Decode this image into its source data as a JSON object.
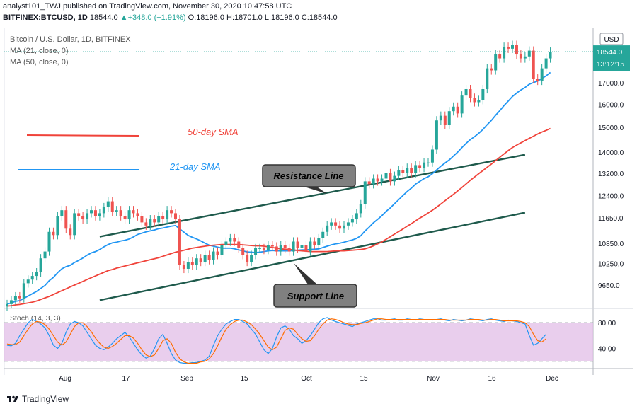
{
  "header": {
    "line1": "analyst101_TWJ published on TradingView.com, November 30, 2020 10:47:58 UTC",
    "symbol": "BITFINEX:BTCUSD, 1D",
    "last": "18544.0",
    "change_arrow": "▲",
    "change": "+348.0 (+1.91%)",
    "ohlc": "O:18196.0 H:18701.0 L:18196.0 C:18544.0"
  },
  "pane_labels": {
    "title": "Bitcoin / U.S. Dollar, 1D, BITFINEX",
    "ma21": "MA (21, close, 0)",
    "ma50": "MA (50, close, 0)",
    "stoch": "Stoch (14, 3, 3)"
  },
  "annotations": {
    "sma50": "50-day SMA",
    "sma21": "21-day SMA",
    "resistance": "Resistance Line",
    "support": "Support Line"
  },
  "price_axis": {
    "currency": "USD",
    "last_price": "18544.0",
    "countdown": "13:12:15"
  },
  "footer": {
    "brand": "TradingView"
  },
  "colors": {
    "up": "#26a69a",
    "down": "#ef5350",
    "ma21": "#2196f3",
    "ma50": "#f0433a",
    "trend": "#1e5a4c",
    "stoch_k": "#2196f3",
    "stoch_d": "#ff6d00",
    "stoch_band": "#e1bee7"
  },
  "chart_data": [
    {
      "type": "candlestick",
      "xlabel": "",
      "ylabel": "",
      "x_ticks": [
        "Aug",
        "17",
        "Sep",
        "15",
        "Oct",
        "15",
        "Nov",
        "16",
        "Dec"
      ],
      "y_ticks": [
        17000,
        16000,
        15000,
        14000,
        13200,
        12400,
        11650,
        10850,
        10250,
        9650
      ],
      "y_tick_labels": [
        "17000.0",
        "16000.0",
        "15000.0",
        "14000.0",
        "13200.0",
        "12400.0",
        "11650.0",
        "10850.0",
        "10250.0",
        "9650.0"
      ],
      "ylim": [
        9150,
        19800
      ],
      "grid": false,
      "close": [
        9150,
        9250,
        9350,
        9300,
        9700,
        9800,
        9900,
        10000,
        10400,
        10600,
        11200,
        11100,
        11700,
        11900,
        11300,
        11100,
        11800,
        11700,
        11600,
        11800,
        11900,
        11700,
        11800,
        12000,
        12200,
        11850,
        11900,
        11700,
        11600,
        11900,
        11800,
        11700,
        11500,
        11400,
        11600,
        11500,
        11700,
        11600,
        11900,
        11800,
        11600,
        10200,
        10100,
        10300,
        10200,
        10400,
        10300,
        10500,
        10350,
        10600,
        10500,
        10800,
        10900,
        11000,
        10900,
        10700,
        10500,
        10300,
        10500,
        10700,
        10700,
        10650,
        10800,
        10750,
        10600,
        10800,
        10700,
        10600,
        10900,
        10700,
        10800,
        10600,
        10900,
        10800,
        11000,
        11200,
        11400,
        11500,
        11400,
        11300,
        11400,
        11500,
        11600,
        11800,
        12100,
        12900,
        12800,
        13000,
        12900,
        13000,
        13200,
        12900,
        13100,
        13300,
        13200,
        13400,
        13200,
        13500,
        13400,
        13600,
        13600,
        14100,
        15300,
        15500,
        15100,
        15700,
        15900,
        15600,
        16400,
        16700,
        16300,
        16100,
        16200,
        16700,
        17700,
        17600,
        18400,
        18200,
        18800,
        18700,
        18900,
        18400,
        18200,
        18300,
        18600,
        17200,
        17100,
        17700,
        18200,
        18544
      ],
      "series": [
        {
          "name": "MA (21, close, 0)",
          "values": [
            9150,
            9180,
            9220,
            9240,
            9300,
            9360,
            9420,
            9480,
            9560,
            9640,
            9770,
            9860,
            9990,
            10100,
            10160,
            10200,
            10280,
            10340,
            10410,
            10490,
            10560,
            10600,
            10660,
            10740,
            10810,
            10860,
            10880,
            10920,
            10940,
            10980,
            11040,
            11120,
            11160,
            11200,
            11230,
            11260,
            11300,
            11320,
            11350,
            11380,
            11400,
            11290,
            11190,
            11090,
            11030,
            10980,
            10920,
            10850,
            10790,
            10760,
            10730,
            10700,
            10700,
            10700,
            10680,
            10650,
            10620,
            10590,
            10580,
            10570,
            10580,
            10600,
            10620,
            10630,
            10620,
            10620,
            10620,
            10620,
            10630,
            10640,
            10650,
            10650,
            10660,
            10670,
            10680,
            10720,
            10760,
            10800,
            10830,
            10850,
            10880,
            10920,
            10950,
            11000,
            11080,
            11230,
            11350,
            11490,
            11600,
            11720,
            11860,
            11980,
            12120,
            12260,
            12400,
            12540,
            12660,
            12800,
            12900,
            13000,
            13070,
            13180,
            13320,
            13460,
            13580,
            13700,
            13850,
            14000,
            14180,
            14350,
            14500,
            14620,
            14760,
            14920,
            15120,
            15300,
            15520,
            15720,
            15950,
            16150,
            16360,
            16520,
            16660,
            16780,
            16930,
            17010,
            17080,
            17210,
            17330,
            17500
          ]
        },
        {
          "name": "MA (50, close, 0)",
          "values": [
            9100,
            9110,
            9130,
            9140,
            9160,
            9180,
            9200,
            9230,
            9270,
            9310,
            9350,
            9400,
            9450,
            9500,
            9550,
            9600,
            9650,
            9700,
            9750,
            9800,
            9850,
            9900,
            9950,
            10000,
            10050,
            10080,
            10120,
            10150,
            10180,
            10210,
            10240,
            10270,
            10300,
            10330,
            10360,
            10390,
            10420,
            10460,
            10500,
            10540,
            10580,
            10610,
            10640,
            10670,
            10700,
            10720,
            10740,
            10760,
            10780,
            10790,
            10800,
            10810,
            10810,
            10810,
            10810,
            10810,
            10800,
            10790,
            10780,
            10770,
            10770,
            10760,
            10740,
            10720,
            10700,
            10680,
            10670,
            10660,
            10650,
            10630,
            10620,
            10610,
            10600,
            10600,
            10600,
            10600,
            10600,
            10610,
            10620,
            10620,
            10620,
            10630,
            10640,
            10650,
            10660,
            10680,
            10720,
            10770,
            10830,
            10890,
            10970,
            11050,
            11130,
            11210,
            11290,
            11380,
            11460,
            11550,
            11640,
            11720,
            11810,
            11900,
            12000,
            12110,
            12220,
            12330,
            12440,
            12560,
            12680,
            12810,
            12940,
            13060,
            13180,
            13300,
            13420,
            13540,
            13670,
            13800,
            13930,
            14060,
            14180,
            14280,
            14370,
            14460,
            14550,
            14640,
            14730,
            14810,
            14880,
            14960
          ]
        }
      ],
      "trendlines": [
        {
          "name": "Resistance Line",
          "from": [
            22,
            11050
          ],
          "to": [
            123,
            13900
          ]
        },
        {
          "name": "Support Line",
          "from": [
            22,
            9250
          ],
          "to": [
            123,
            11820
          ]
        }
      ]
    },
    {
      "type": "line",
      "title": "Stoch (14, 3, 3)",
      "y_ticks": [
        80,
        40
      ],
      "y_tick_labels": [
        "80.00",
        "40.00"
      ],
      "ylim": [
        12,
        100
      ],
      "bands": [
        20,
        80
      ],
      "series": [
        {
          "name": "%K",
          "values": [
            45,
            44,
            48,
            60,
            70,
            80,
            85,
            82,
            78,
            72,
            60,
            45,
            40,
            48,
            65,
            78,
            82,
            80,
            75,
            65,
            55,
            45,
            40,
            38,
            42,
            48,
            55,
            60,
            65,
            58,
            48,
            38,
            30,
            25,
            28,
            40,
            55,
            62,
            48,
            32,
            22,
            18,
            17,
            17,
            18,
            18,
            20,
            22,
            28,
            45,
            60,
            70,
            78,
            82,
            85,
            85,
            82,
            78,
            70,
            62,
            50,
            38,
            32,
            40,
            58,
            72,
            75,
            70,
            60,
            55,
            48,
            52,
            60,
            70,
            80,
            86,
            88,
            84,
            82,
            80,
            78,
            76,
            74,
            78,
            80,
            82,
            84,
            86,
            86,
            84,
            84,
            85,
            86,
            84,
            84,
            86,
            85,
            84,
            86,
            85,
            85,
            84,
            85,
            86,
            84,
            83,
            85,
            84,
            83,
            84,
            86,
            85,
            84,
            83,
            85,
            86,
            84,
            83,
            82,
            84,
            83,
            82,
            80,
            78,
            60,
            45,
            48,
            55,
            62
          ]
        },
        {
          "name": "%D",
          "values": [
            47,
            46,
            46,
            50,
            60,
            70,
            78,
            82,
            81,
            77,
            70,
            60,
            50,
            45,
            50,
            62,
            74,
            80,
            80,
            74,
            66,
            56,
            48,
            42,
            40,
            43,
            48,
            54,
            60,
            60,
            56,
            48,
            38,
            30,
            27,
            30,
            40,
            52,
            55,
            48,
            34,
            24,
            19,
            17,
            17,
            17,
            19,
            20,
            24,
            32,
            44,
            58,
            70,
            77,
            82,
            84,
            84,
            81,
            77,
            70,
            62,
            52,
            42,
            38,
            42,
            55,
            68,
            72,
            70,
            62,
            55,
            51,
            52,
            60,
            70,
            78,
            84,
            86,
            85,
            83,
            80,
            78,
            77,
            77,
            79,
            80,
            82,
            84,
            86,
            86,
            85,
            85,
            85,
            85,
            85,
            85,
            85,
            85,
            85,
            85,
            85,
            85,
            85,
            85,
            85,
            84,
            84,
            84,
            84,
            84,
            85,
            85,
            85,
            84,
            84,
            85,
            85,
            84,
            83,
            83,
            83,
            83,
            82,
            80,
            74,
            62,
            52,
            50,
            55
          ]
        }
      ]
    }
  ]
}
